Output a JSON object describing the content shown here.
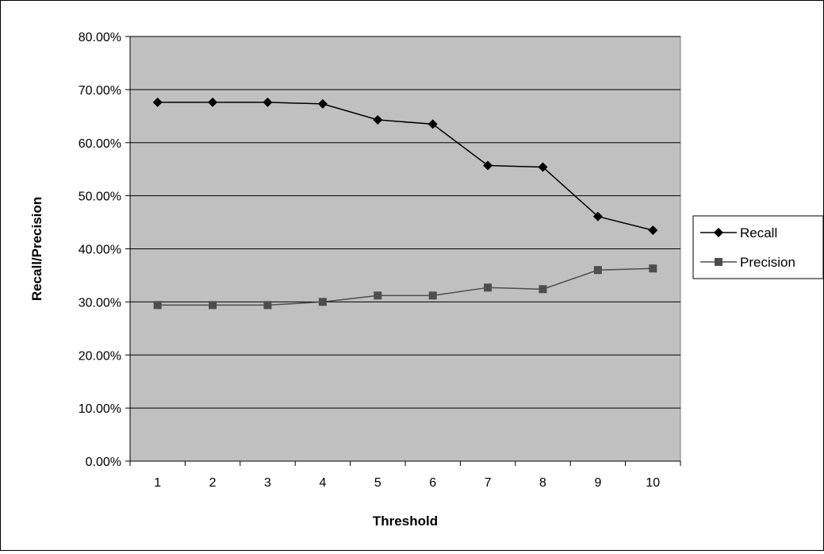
{
  "chart_data": {
    "type": "line",
    "xlabel": "Threshold",
    "ylabel": "Recall/Precision",
    "categories": [
      "1",
      "2",
      "3",
      "4",
      "5",
      "6",
      "7",
      "8",
      "9",
      "10"
    ],
    "ylim": [
      0,
      0.8
    ],
    "y_ticks": [
      "0.00%",
      "10.00%",
      "20.00%",
      "30.00%",
      "40.00%",
      "50.00%",
      "60.00%",
      "70.00%",
      "80.00%"
    ],
    "grid": "horizontal",
    "plot_background": "#c0c0c0",
    "legend_position": "right",
    "series": [
      {
        "name": "Recall",
        "marker": "diamond",
        "color": "#000000",
        "values": [
          0.676,
          0.676,
          0.676,
          0.673,
          0.643,
          0.635,
          0.557,
          0.554,
          0.461,
          0.435
        ]
      },
      {
        "name": "Precision",
        "marker": "square",
        "color": "#4d4d4d",
        "values": [
          0.294,
          0.294,
          0.294,
          0.3,
          0.312,
          0.312,
          0.327,
          0.324,
          0.36,
          0.363
        ]
      }
    ]
  }
}
